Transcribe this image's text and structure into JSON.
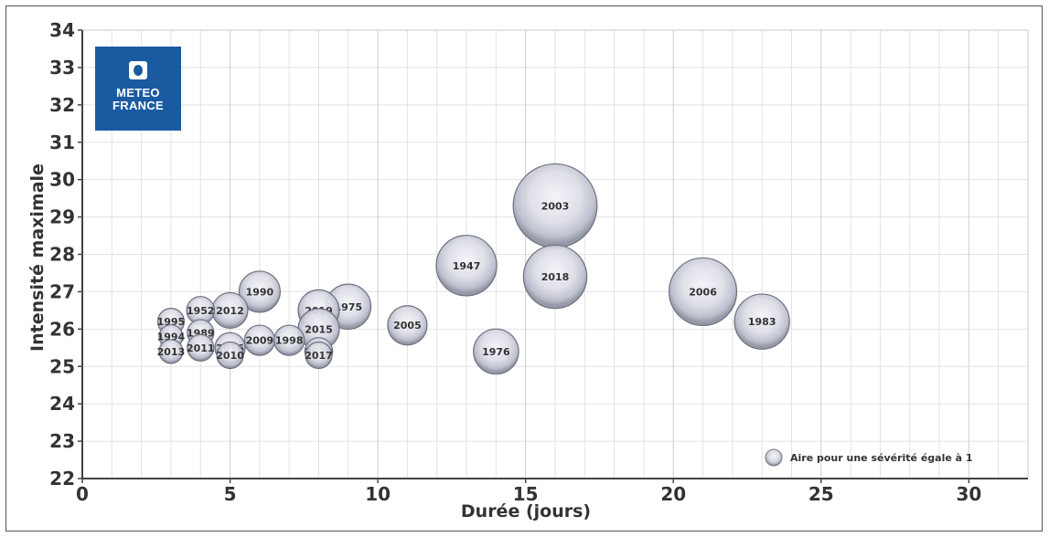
{
  "logo": {
    "line1": "METEO",
    "line2": "FRANCE"
  },
  "chart_data": {
    "type": "bubble",
    "xlabel": "Durée (jours)",
    "ylabel": "Intensité maximale",
    "xlim": [
      0,
      32
    ],
    "ylim": [
      22,
      34
    ],
    "xticks": [
      0,
      5,
      10,
      15,
      20,
      25,
      30
    ],
    "yticks": [
      22,
      23,
      24,
      25,
      26,
      27,
      28,
      29,
      30,
      31,
      32,
      33,
      34
    ],
    "grid": true,
    "legend": {
      "label": "Aire pour une sévérité égale à 1",
      "position": "bottom-right"
    },
    "points": [
      {
        "label": "2003",
        "x": 16,
        "y": 29.3,
        "size": 10.0
      },
      {
        "label": "2018",
        "x": 16,
        "y": 27.4,
        "size": 5.7
      },
      {
        "label": "1947",
        "x": 13,
        "y": 27.7,
        "size": 5.2
      },
      {
        "label": "2006",
        "x": 21,
        "y": 27.0,
        "size": 6.5
      },
      {
        "label": "1983",
        "x": 23,
        "y": 26.2,
        "size": 4.3
      },
      {
        "label": "1976",
        "x": 14,
        "y": 25.4,
        "size": 2.9
      },
      {
        "label": "2005",
        "x": 11,
        "y": 26.1,
        "size": 2.2
      },
      {
        "label": "1975",
        "x": 9,
        "y": 26.6,
        "size": 2.9
      },
      {
        "label": "2019",
        "x": 8,
        "y": 26.5,
        "size": 2.4
      },
      {
        "label": "2015",
        "x": 8,
        "y": 26.0,
        "size": 2.4
      },
      {
        "label": "2020",
        "x": 8,
        "y": 25.4,
        "size": 1.1
      },
      {
        "label": "2017",
        "x": 8,
        "y": 25.3,
        "size": 1.0
      },
      {
        "label": "1990",
        "x": 6,
        "y": 27.0,
        "size": 2.4
      },
      {
        "label": "2009",
        "x": 6,
        "y": 25.7,
        "size": 1.3
      },
      {
        "label": "1998",
        "x": 7,
        "y": 25.7,
        "size": 1.3
      },
      {
        "label": "2012",
        "x": 5,
        "y": 26.5,
        "size": 1.8
      },
      {
        "label": "2016",
        "x": 5,
        "y": 25.5,
        "size": 1.3
      },
      {
        "label": "2010",
        "x": 5,
        "y": 25.3,
        "size": 1.0
      },
      {
        "label": "1952",
        "x": 4,
        "y": 26.5,
        "size": 1.1
      },
      {
        "label": "1989",
        "x": 4,
        "y": 25.9,
        "size": 1.0
      },
      {
        "label": "2011",
        "x": 4,
        "y": 25.5,
        "size": 1.0
      },
      {
        "label": "1995",
        "x": 3,
        "y": 26.2,
        "size": 1.0
      },
      {
        "label": "1994",
        "x": 3,
        "y": 25.8,
        "size": 0.8
      },
      {
        "label": "2013",
        "x": 3,
        "y": 25.4,
        "size": 0.8
      }
    ]
  }
}
